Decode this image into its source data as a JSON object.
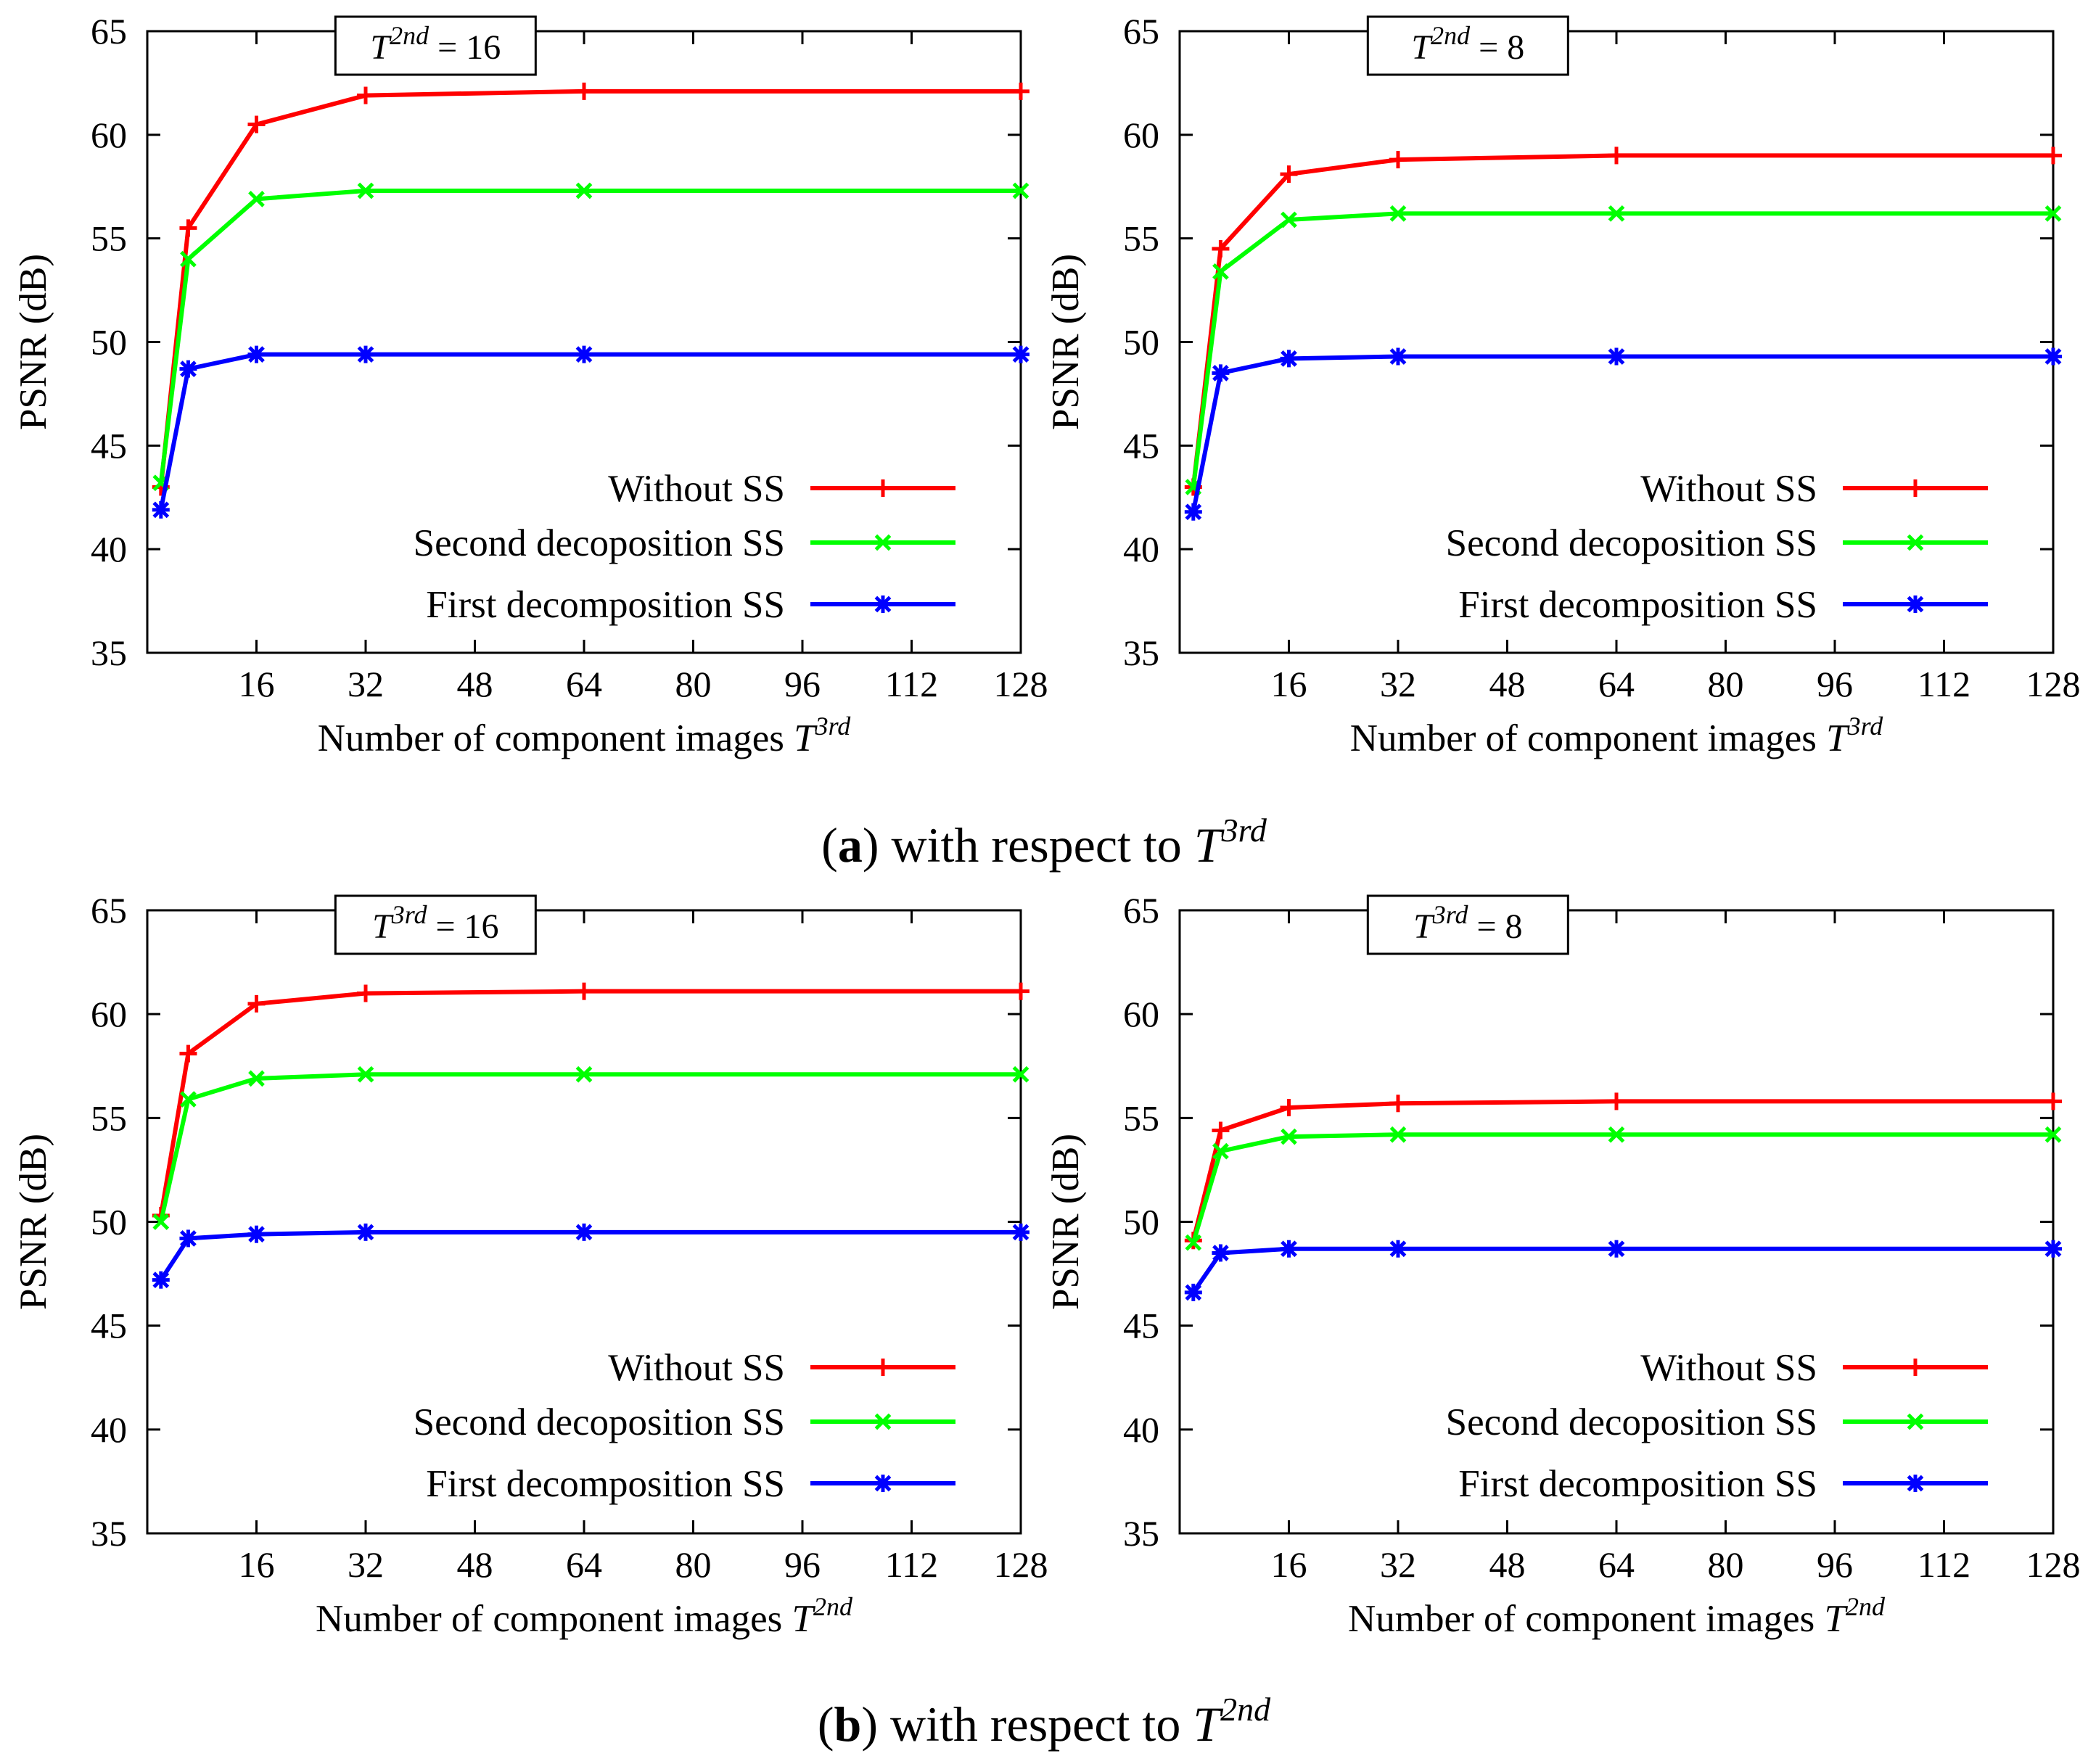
{
  "figure": {
    "caption_a": {
      "label": "a",
      "text": " with respect to ",
      "symbol": "T",
      "sup": "3rd"
    },
    "caption_b": {
      "label": "b",
      "text": " with respect to ",
      "symbol": "T",
      "sup": "2nd"
    }
  },
  "legend": [
    "Without SS",
    "Second decoposition SS",
    "First decomposition SS"
  ],
  "colors": {
    "Without SS": "#ff0000",
    "Second decoposition SS": "#00ff00",
    "First decomposition SS": "#0000ff"
  },
  "chart_data": [
    {
      "type": "line",
      "panel": "a-left",
      "annotation": {
        "symbol": "T",
        "sup": "2nd",
        "value": "= 16"
      },
      "xlabel": {
        "text": "Number of component images ",
        "symbol": "T",
        "sup": "3rd"
      },
      "ylabel": "PSNR (dB)",
      "xticks": [
        16,
        32,
        48,
        64,
        80,
        96,
        112,
        128
      ],
      "yticks": [
        35,
        40,
        45,
        50,
        55,
        60,
        65
      ],
      "xlim": [
        0,
        128
      ],
      "ylim": [
        35,
        65
      ],
      "legend_position": "bottom-right",
      "x": [
        2,
        6,
        16,
        32,
        64,
        128
      ],
      "series": [
        {
          "name": "Without SS",
          "marker": "plus",
          "values": [
            43.0,
            55.5,
            60.5,
            61.9,
            62.1,
            62.1
          ]
        },
        {
          "name": "Second decoposition SS",
          "marker": "x",
          "values": [
            43.2,
            54.0,
            56.9,
            57.3,
            57.3,
            57.3
          ]
        },
        {
          "name": "First decomposition SS",
          "marker": "star",
          "values": [
            41.9,
            48.7,
            49.4,
            49.4,
            49.4,
            49.4
          ]
        }
      ]
    },
    {
      "type": "line",
      "panel": "a-right",
      "annotation": {
        "symbol": "T",
        "sup": "2nd",
        "value": "= 8"
      },
      "xlabel": {
        "text": "Number of component images ",
        "symbol": "T",
        "sup": "3rd"
      },
      "ylabel": "PSNR (dB)",
      "xticks": [
        16,
        32,
        48,
        64,
        80,
        96,
        112,
        128
      ],
      "yticks": [
        35,
        40,
        45,
        50,
        55,
        60,
        65
      ],
      "xlim": [
        0,
        128
      ],
      "ylim": [
        35,
        65
      ],
      "legend_position": "bottom-right",
      "x": [
        2,
        6,
        16,
        32,
        64,
        128
      ],
      "series": [
        {
          "name": "Without SS",
          "marker": "plus",
          "values": [
            43.0,
            54.5,
            58.1,
            58.8,
            59.0,
            59.0
          ]
        },
        {
          "name": "Second decoposition SS",
          "marker": "x",
          "values": [
            43.0,
            53.4,
            55.9,
            56.2,
            56.2,
            56.2
          ]
        },
        {
          "name": "First decomposition SS",
          "marker": "star",
          "values": [
            41.8,
            48.5,
            49.2,
            49.3,
            49.3,
            49.3
          ]
        }
      ]
    },
    {
      "type": "line",
      "panel": "b-left",
      "annotation": {
        "symbol": "T",
        "sup": "3rd",
        "value": "= 16"
      },
      "xlabel": {
        "text": "Number of component images ",
        "symbol": "T",
        "sup": "2nd"
      },
      "ylabel": "PSNR (dB)",
      "xticks": [
        16,
        32,
        48,
        64,
        80,
        96,
        112,
        128
      ],
      "yticks": [
        35,
        40,
        45,
        50,
        55,
        60,
        65
      ],
      "xlim": [
        0,
        128
      ],
      "ylim": [
        35,
        65
      ],
      "legend_position": "bottom-right",
      "x": [
        2,
        6,
        16,
        32,
        64,
        128
      ],
      "series": [
        {
          "name": "Without SS",
          "marker": "plus",
          "values": [
            50.3,
            58.1,
            60.5,
            61.0,
            61.1,
            61.1
          ]
        },
        {
          "name": "Second decoposition SS",
          "marker": "x",
          "values": [
            50.0,
            55.9,
            56.9,
            57.1,
            57.1,
            57.1
          ]
        },
        {
          "name": "First decomposition SS",
          "marker": "star",
          "values": [
            47.2,
            49.2,
            49.4,
            49.5,
            49.5,
            49.5
          ]
        }
      ]
    },
    {
      "type": "line",
      "panel": "b-right",
      "annotation": {
        "symbol": "T",
        "sup": "3rd",
        "value": "= 8"
      },
      "xlabel": {
        "text": "Number of component images ",
        "symbol": "T",
        "sup": "2nd"
      },
      "ylabel": "PSNR (dB)",
      "xticks": [
        16,
        32,
        48,
        64,
        80,
        96,
        112,
        128
      ],
      "yticks": [
        35,
        40,
        45,
        50,
        55,
        60,
        65
      ],
      "xlim": [
        0,
        128
      ],
      "ylim": [
        35,
        65
      ],
      "legend_position": "bottom-right",
      "x": [
        2,
        6,
        16,
        32,
        64,
        128
      ],
      "series": [
        {
          "name": "Without SS",
          "marker": "plus",
          "values": [
            49.1,
            54.4,
            55.5,
            55.7,
            55.8,
            55.8
          ]
        },
        {
          "name": "Second decoposition SS",
          "marker": "x",
          "values": [
            49.0,
            53.4,
            54.1,
            54.2,
            54.2,
            54.2
          ]
        },
        {
          "name": "First decomposition SS",
          "marker": "star",
          "values": [
            46.6,
            48.5,
            48.7,
            48.7,
            48.7,
            48.7
          ]
        }
      ]
    }
  ]
}
